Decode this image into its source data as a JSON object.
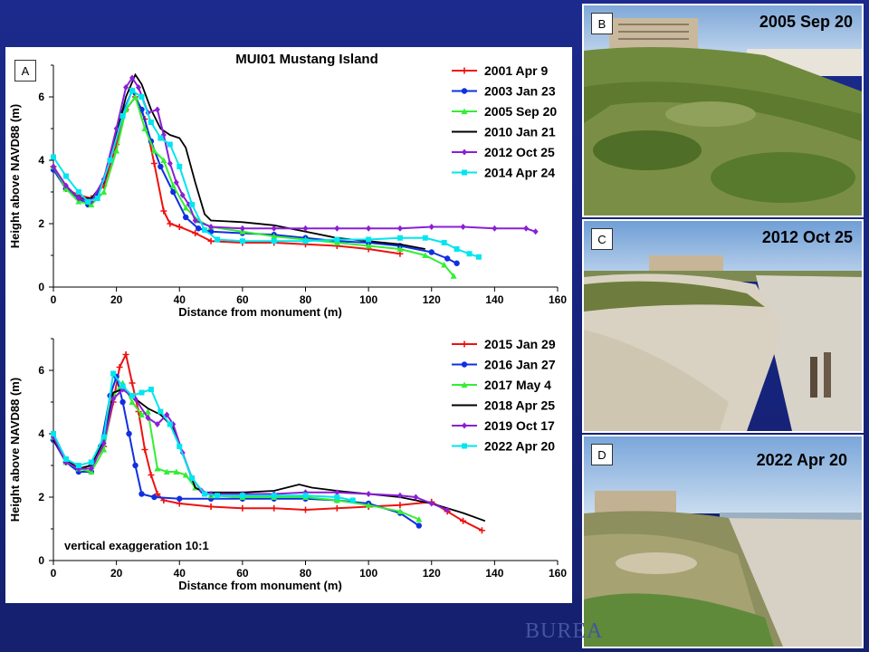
{
  "panel_labels": {
    "a": "A",
    "b": "B",
    "c": "C",
    "d": "D"
  },
  "footer_logo": "BUREA",
  "photos": [
    {
      "tag": "B",
      "date": "2005 Sep 20",
      "scene": "vegetated-dune"
    },
    {
      "tag": "C",
      "date": "2012 Oct 25",
      "scene": "eroded-dune"
    },
    {
      "tag": "D",
      "date": "2022 Apr 20",
      "scene": "recovering-dune"
    }
  ],
  "chart_data": [
    {
      "type": "line",
      "title": "MUI01 Mustang Island",
      "xlabel": "Distance from monument (m)",
      "ylabel": "Height above NAVD88 (m)",
      "xlim": [
        0,
        160
      ],
      "ylim": [
        0,
        7
      ],
      "xticks": [
        0,
        20,
        40,
        60,
        80,
        100,
        120,
        140,
        160
      ],
      "yticks": [
        0,
        2,
        4,
        6
      ],
      "legend": "top-right",
      "series": [
        {
          "name": "2001 Apr 9",
          "color": "#ee1111",
          "marker": "plus",
          "x": [
            0,
            4,
            8,
            12,
            16,
            20,
            23,
            26,
            29,
            32,
            35,
            37,
            40,
            45,
            50,
            60,
            70,
            80,
            90,
            100,
            110
          ],
          "y": [
            3.8,
            3.1,
            2.9,
            2.8,
            3.2,
            4.5,
            5.6,
            6.0,
            5.3,
            3.9,
            2.4,
            2.0,
            1.9,
            1.7,
            1.45,
            1.4,
            1.4,
            1.35,
            1.3,
            1.2,
            1.05
          ]
        },
        {
          "name": "2003 Jan 23",
          "color": "#1030e0",
          "marker": "circle",
          "x": [
            0,
            4,
            8,
            11,
            14,
            18,
            22,
            25,
            28,
            31,
            34,
            38,
            42,
            46,
            50,
            60,
            70,
            80,
            90,
            100,
            110,
            120,
            125,
            128
          ],
          "y": [
            3.7,
            3.1,
            2.8,
            2.6,
            2.9,
            4.0,
            5.5,
            6.2,
            5.6,
            4.6,
            3.8,
            3.0,
            2.2,
            1.85,
            1.75,
            1.7,
            1.65,
            1.55,
            1.45,
            1.4,
            1.3,
            1.1,
            0.9,
            0.75
          ]
        },
        {
          "name": "2005 Sep 20",
          "color": "#33ee33",
          "marker": "triangle",
          "x": [
            0,
            4,
            8,
            12,
            16,
            20,
            23,
            26,
            29,
            32,
            35,
            38,
            42,
            46,
            50,
            60,
            70,
            80,
            90,
            100,
            110,
            118,
            124,
            127
          ],
          "y": [
            3.8,
            3.1,
            2.7,
            2.6,
            3.0,
            4.3,
            5.6,
            6.0,
            5.0,
            4.3,
            4.0,
            3.2,
            2.5,
            2.1,
            1.9,
            1.75,
            1.6,
            1.5,
            1.4,
            1.3,
            1.2,
            1.0,
            0.7,
            0.35
          ]
        },
        {
          "name": "2010 Jan 21",
          "color": "#000000",
          "marker": "none",
          "x": [
            0,
            4,
            8,
            12,
            16,
            20,
            23,
            26,
            28,
            31,
            34,
            37,
            40,
            42,
            45,
            48,
            50,
            60,
            70,
            80,
            90,
            100,
            110,
            118
          ],
          "y": [
            3.8,
            3.2,
            2.8,
            2.8,
            3.3,
            4.8,
            6.0,
            6.7,
            6.4,
            5.6,
            5.0,
            4.8,
            4.7,
            4.4,
            3.3,
            2.3,
            2.1,
            2.05,
            1.95,
            1.75,
            1.55,
            1.45,
            1.35,
            1.2
          ]
        },
        {
          "name": "2012 Oct 25",
          "color": "#8a1fd6",
          "marker": "diamond",
          "x": [
            0,
            4,
            8,
            12,
            16,
            20,
            23,
            25,
            27,
            30,
            33,
            35,
            37,
            39,
            41,
            43,
            45,
            50,
            60,
            70,
            80,
            90,
            100,
            110,
            120,
            130,
            140,
            150,
            153
          ],
          "y": [
            3.8,
            3.2,
            2.8,
            2.7,
            3.4,
            5.0,
            6.3,
            6.6,
            6.3,
            5.5,
            5.6,
            4.8,
            3.9,
            3.3,
            2.9,
            2.6,
            2.1,
            1.9,
            1.85,
            1.85,
            1.85,
            1.85,
            1.85,
            1.85,
            1.9,
            1.9,
            1.85,
            1.85,
            1.75
          ]
        },
        {
          "name": "2014 Apr 24",
          "color": "#00e5ee",
          "marker": "square",
          "x": [
            0,
            4,
            8,
            11,
            14,
            18,
            22,
            25,
            28,
            31,
            34,
            37,
            40,
            44,
            48,
            52,
            60,
            70,
            80,
            90,
            100,
            110,
            118,
            124,
            128,
            132,
            135
          ],
          "y": [
            4.1,
            3.5,
            3.0,
            2.7,
            2.8,
            4.0,
            5.4,
            6.2,
            6.0,
            5.2,
            4.7,
            4.5,
            3.8,
            2.6,
            1.8,
            1.5,
            1.45,
            1.45,
            1.45,
            1.5,
            1.5,
            1.55,
            1.55,
            1.4,
            1.2,
            1.05,
            0.95
          ]
        }
      ]
    },
    {
      "type": "line",
      "title": "",
      "annotation": "vertical exaggeration 10:1",
      "xlabel": "Distance from monument (m)",
      "ylabel": "Height above NAVD88 (m)",
      "xlim": [
        0,
        160
      ],
      "ylim": [
        0,
        7
      ],
      "xticks": [
        0,
        20,
        40,
        60,
        80,
        100,
        120,
        140,
        160
      ],
      "yticks": [
        0,
        2,
        4,
        6
      ],
      "legend": "top-right",
      "series": [
        {
          "name": "2015 Jan 29",
          "color": "#ee1111",
          "marker": "plus",
          "x": [
            0,
            4,
            8,
            12,
            16,
            19,
            21,
            23,
            25,
            27,
            29,
            31,
            33,
            35,
            40,
            50,
            60,
            70,
            80,
            90,
            100,
            110,
            120,
            125,
            130,
            136
          ],
          "y": [
            3.8,
            3.1,
            2.9,
            3.0,
            3.6,
            5.0,
            6.1,
            6.5,
            5.6,
            4.7,
            3.5,
            2.7,
            2.1,
            1.9,
            1.8,
            1.7,
            1.65,
            1.65,
            1.6,
            1.65,
            1.7,
            1.75,
            1.85,
            1.55,
            1.25,
            0.95
          ]
        },
        {
          "name": "2016 Jan 27",
          "color": "#1030e0",
          "marker": "circle",
          "x": [
            0,
            4,
            8,
            12,
            15,
            18,
            20,
            22,
            24,
            26,
            28,
            32,
            40,
            50,
            60,
            70,
            80,
            90,
            100,
            110,
            116
          ],
          "y": [
            3.8,
            3.1,
            2.8,
            2.8,
            3.6,
            5.2,
            5.8,
            5.0,
            4.0,
            3.0,
            2.1,
            2.0,
            1.95,
            1.95,
            1.95,
            1.95,
            1.95,
            1.9,
            1.8,
            1.5,
            1.1
          ]
        },
        {
          "name": "2017 May 4",
          "color": "#33ee33",
          "marker": "triangle",
          "x": [
            0,
            4,
            8,
            12,
            16,
            19,
            22,
            25,
            28,
            30,
            33,
            36,
            39,
            42,
            45,
            50,
            60,
            70,
            80,
            90,
            100,
            110,
            116
          ],
          "y": [
            3.9,
            3.1,
            2.9,
            2.8,
            3.5,
            5.2,
            5.6,
            5.0,
            4.6,
            4.7,
            2.9,
            2.8,
            2.8,
            2.7,
            2.3,
            2.05,
            2.0,
            2.0,
            2.0,
            1.9,
            1.75,
            1.55,
            1.3
          ]
        },
        {
          "name": "2018 Apr 25",
          "color": "#000000",
          "marker": "none",
          "x": [
            0,
            4,
            8,
            12,
            16,
            19,
            22,
            26,
            30,
            34,
            38,
            42,
            45,
            48,
            50,
            60,
            70,
            78,
            82,
            90,
            100,
            110,
            120,
            130,
            137
          ],
          "y": [
            3.8,
            3.2,
            2.9,
            3.0,
            3.8,
            5.3,
            5.4,
            5.1,
            4.8,
            4.6,
            4.2,
            3.1,
            2.3,
            2.15,
            2.15,
            2.15,
            2.2,
            2.4,
            2.3,
            2.2,
            2.1,
            2.0,
            1.8,
            1.5,
            1.25
          ]
        },
        {
          "name": "2019 Oct 17",
          "color": "#8a1fd6",
          "marker": "diamond",
          "x": [
            0,
            4,
            8,
            12,
            16,
            19,
            22,
            26,
            30,
            33,
            36,
            38,
            41,
            44,
            47,
            50,
            60,
            70,
            80,
            90,
            100,
            110,
            115,
            120,
            125
          ],
          "y": [
            3.9,
            3.1,
            2.9,
            2.9,
            3.7,
            5.1,
            5.4,
            5.1,
            4.5,
            4.3,
            4.6,
            4.3,
            3.4,
            2.6,
            2.2,
            2.1,
            2.1,
            2.1,
            2.15,
            2.15,
            2.1,
            2.05,
            2.0,
            1.8,
            1.6
          ]
        },
        {
          "name": "2022 Apr 20",
          "color": "#00e5ee",
          "marker": "square",
          "x": [
            0,
            4,
            8,
            12,
            16,
            19,
            22,
            25,
            28,
            31,
            34,
            37,
            40,
            44,
            48,
            52,
            60,
            70,
            80,
            90,
            95
          ],
          "y": [
            4.0,
            3.2,
            3.0,
            3.1,
            3.9,
            5.9,
            5.5,
            5.2,
            5.3,
            5.4,
            4.7,
            4.3,
            3.6,
            2.6,
            2.1,
            2.05,
            2.05,
            2.05,
            2.05,
            2.0,
            1.9
          ]
        }
      ]
    }
  ]
}
